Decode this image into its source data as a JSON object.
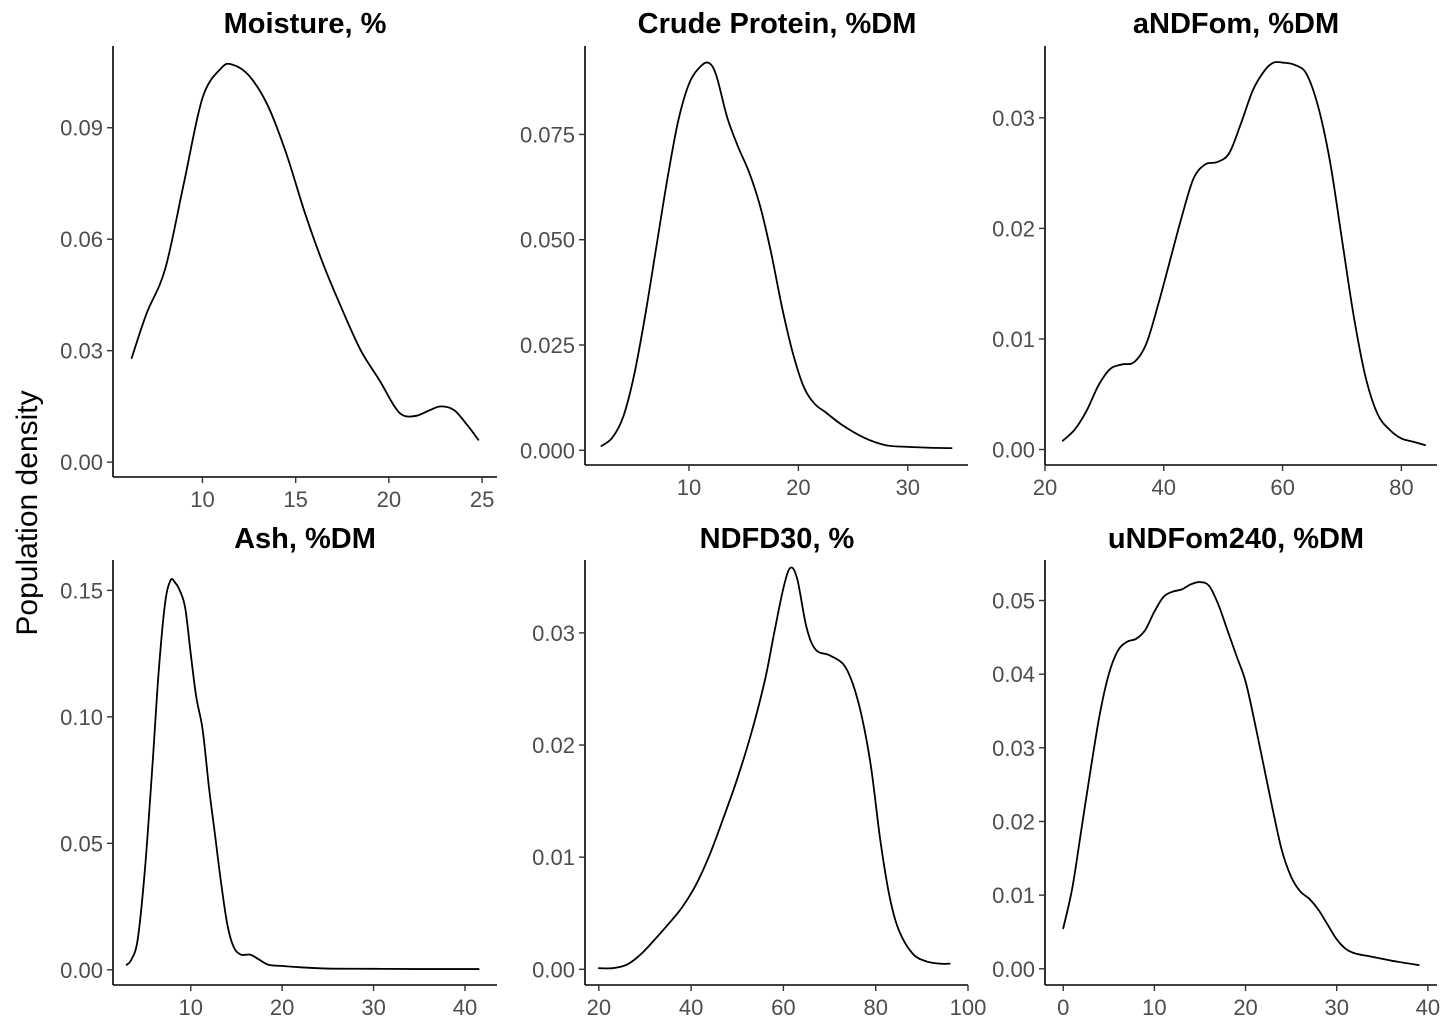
{
  "figure": {
    "ylabel": "Population density",
    "colors": {
      "line": "#000000",
      "axis": "#000000",
      "tick_text": "#4d4d4d",
      "background": "#ffffff"
    }
  },
  "chart_data": [
    {
      "type": "line",
      "title": "Moisture, %",
      "xlabel": "",
      "ylabel": "Population density",
      "xlim": [
        5.2,
        25.8
      ],
      "ylim": [
        -0.004,
        0.112
      ],
      "xticks": [
        10,
        15,
        20,
        25
      ],
      "yticks": [
        0.0,
        0.03,
        0.06,
        0.09
      ],
      "ytick_labels": [
        "0.00",
        "0.03",
        "0.06",
        "0.09"
      ],
      "grid": false,
      "series": [
        {
          "x": [
            6.2,
            7.0,
            8.0,
            9.0,
            10.0,
            11.0,
            11.6,
            12.5,
            13.5,
            14.5,
            15.5,
            16.5,
            17.5,
            18.5,
            19.5,
            20.3,
            20.8,
            21.5,
            22.2,
            22.8,
            23.5,
            24.2,
            24.8
          ],
          "y": [
            0.028,
            0.04,
            0.052,
            0.075,
            0.098,
            0.106,
            0.107,
            0.104,
            0.096,
            0.083,
            0.067,
            0.053,
            0.041,
            0.03,
            0.022,
            0.015,
            0.0125,
            0.0125,
            0.014,
            0.015,
            0.014,
            0.01,
            0.006
          ]
        }
      ]
    },
    {
      "type": "line",
      "title": "Crude Protein, %DM",
      "xlabel": "",
      "ylabel": "",
      "xlim": [
        0.5,
        35.5
      ],
      "ylim": [
        -0.0035,
        0.096
      ],
      "xticks": [
        10,
        20,
        30
      ],
      "yticks": [
        0.0,
        0.025,
        0.05,
        0.075
      ],
      "ytick_labels": [
        "0.000",
        "0.025",
        "0.050",
        "0.075"
      ],
      "grid": false,
      "series": [
        {
          "x": [
            2,
            3,
            4,
            5,
            6,
            7,
            8,
            9,
            10,
            11,
            11.8,
            12.5,
            13.5,
            14.5,
            15.5,
            16.5,
            17.5,
            18.5,
            19.5,
            20.5,
            21.5,
            22.5,
            24,
            26,
            28,
            30,
            32,
            34
          ],
          "y": [
            0.001,
            0.003,
            0.008,
            0.018,
            0.032,
            0.048,
            0.064,
            0.078,
            0.087,
            0.091,
            0.092,
            0.089,
            0.079,
            0.072,
            0.066,
            0.058,
            0.047,
            0.034,
            0.023,
            0.015,
            0.011,
            0.009,
            0.006,
            0.003,
            0.0012,
            0.0008,
            0.0006,
            0.0005
          ]
        }
      ]
    },
    {
      "type": "line",
      "title": "aNDFom, %DM",
      "xlabel": "",
      "ylabel": "",
      "xlim": [
        20,
        86
      ],
      "ylim": [
        -0.0014,
        0.0365
      ],
      "xticks": [
        20,
        40,
        60,
        80
      ],
      "yticks": [
        0.0,
        0.01,
        0.02,
        0.03
      ],
      "ytick_labels": [
        "0.00",
        "0.01",
        "0.02",
        "0.03"
      ],
      "grid": false,
      "series": [
        {
          "x": [
            23,
            25,
            27,
            29,
            31,
            33,
            35,
            37,
            39,
            41,
            43,
            45,
            47,
            49,
            51,
            53,
            55,
            57,
            58.5,
            60,
            62,
            64,
            66,
            68,
            70,
            72,
            74,
            76,
            78,
            80,
            82,
            84
          ],
          "y": [
            0.0008,
            0.0018,
            0.0035,
            0.0058,
            0.0073,
            0.0077,
            0.0079,
            0.0095,
            0.013,
            0.017,
            0.021,
            0.0245,
            0.0258,
            0.026,
            0.0268,
            0.0295,
            0.0325,
            0.0343,
            0.035,
            0.035,
            0.0348,
            0.034,
            0.031,
            0.026,
            0.019,
            0.012,
            0.0065,
            0.0032,
            0.0018,
            0.001,
            0.0007,
            0.0004
          ]
        }
      ]
    },
    {
      "type": "line",
      "title": "Ash, %DM",
      "xlabel": "",
      "ylabel": "",
      "xlim": [
        1.5,
        43.5
      ],
      "ylim": [
        -0.006,
        0.162
      ],
      "xticks": [
        10,
        20,
        30,
        40
      ],
      "yticks": [
        0.0,
        0.05,
        0.1,
        0.15
      ],
      "ytick_labels": [
        "0.00",
        "0.05",
        "0.10",
        "0.15"
      ],
      "grid": false,
      "series": [
        {
          "x": [
            3.0,
            3.5,
            4.2,
            5.0,
            5.8,
            6.5,
            7.2,
            7.8,
            8.3,
            8.8,
            9.4,
            10.0,
            10.6,
            11.3,
            12.0,
            12.6,
            13.3,
            14.0,
            14.7,
            15.5,
            16.5,
            17.5,
            18.5,
            20,
            22,
            25,
            30,
            35,
            41.5
          ],
          "y": [
            0.002,
            0.004,
            0.012,
            0.04,
            0.08,
            0.118,
            0.145,
            0.154,
            0.153,
            0.15,
            0.143,
            0.125,
            0.108,
            0.095,
            0.072,
            0.055,
            0.035,
            0.018,
            0.009,
            0.006,
            0.006,
            0.004,
            0.002,
            0.0015,
            0.001,
            0.0005,
            0.0004,
            0.0003,
            0.0003
          ]
        }
      ]
    },
    {
      "type": "line",
      "title": "NDFD30, %",
      "xlabel": "",
      "ylabel": "",
      "xlim": [
        17,
        100
      ],
      "ylim": [
        -0.0014,
        0.0365
      ],
      "xticks": [
        20,
        40,
        60,
        80,
        100
      ],
      "yticks": [
        0.0,
        0.01,
        0.02,
        0.03
      ],
      "ytick_labels": [
        "0.00",
        "0.01",
        "0.02",
        "0.03"
      ],
      "grid": false,
      "series": [
        {
          "x": [
            20,
            23,
            26,
            29,
            32,
            35,
            38,
            41,
            44,
            47,
            50,
            53,
            56,
            58,
            60,
            61.5,
            63,
            65,
            67,
            70,
            73,
            75,
            77,
            79,
            81,
            83,
            85,
            88,
            91,
            94,
            96
          ],
          "y": [
            0.0001,
            0.0001,
            0.0004,
            0.0013,
            0.0026,
            0.004,
            0.0055,
            0.0075,
            0.0102,
            0.0135,
            0.017,
            0.021,
            0.0258,
            0.03,
            0.034,
            0.0358,
            0.0348,
            0.0305,
            0.0285,
            0.028,
            0.0272,
            0.0255,
            0.0225,
            0.018,
            0.0115,
            0.0065,
            0.0035,
            0.0014,
            0.0007,
            0.0005,
            0.0005
          ]
        }
      ]
    },
    {
      "type": "line",
      "title": "uNDFom240, %DM",
      "xlabel": "",
      "ylabel": "",
      "xlim": [
        -2,
        41
      ],
      "ylim": [
        -0.0022,
        0.0555
      ],
      "xticks": [
        0,
        10,
        20,
        30,
        40
      ],
      "yticks": [
        0.0,
        0.01,
        0.02,
        0.03,
        0.04,
        0.05
      ],
      "ytick_labels": [
        "0.00",
        "0.01",
        "0.02",
        "0.03",
        "0.04",
        "0.05"
      ],
      "grid": false,
      "series": [
        {
          "x": [
            0,
            1,
            2,
            3,
            4,
            5,
            6,
            7,
            8,
            9,
            10,
            11,
            12,
            13,
            14,
            15,
            16,
            17,
            18,
            19,
            20,
            21,
            22,
            23,
            24,
            25,
            26,
            27,
            28,
            29,
            30,
            31,
            32,
            34,
            36,
            39
          ],
          "y": [
            0.0055,
            0.011,
            0.019,
            0.027,
            0.0345,
            0.04,
            0.0432,
            0.0444,
            0.0448,
            0.046,
            0.0485,
            0.0505,
            0.0512,
            0.0515,
            0.0522,
            0.0525,
            0.052,
            0.0495,
            0.046,
            0.0425,
            0.039,
            0.0335,
            0.0275,
            0.0215,
            0.016,
            0.0125,
            0.0105,
            0.0095,
            0.008,
            0.006,
            0.004,
            0.0027,
            0.0021,
            0.0016,
            0.0011,
            0.0005
          ]
        }
      ]
    }
  ]
}
